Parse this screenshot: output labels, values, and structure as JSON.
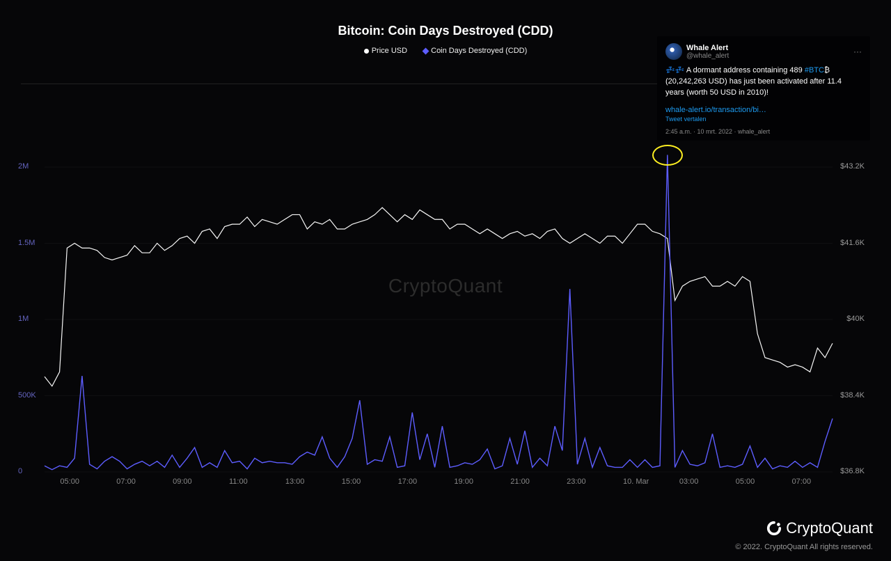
{
  "chart": {
    "title": "Bitcoin: Coin Days Destroyed (CDD)",
    "legend": {
      "price": {
        "label": "Price USD",
        "color": "#ffffff"
      },
      "cdd": {
        "label": "Coin Days Destroyed (CDD)",
        "color": "#5d5dff"
      }
    },
    "watermark": "CryptoQuant",
    "background_color": "#060608",
    "grid_color": "#2a2a2a",
    "axis_label_color": "#888888",
    "axis_label_fontsize": 11,
    "price_series": {
      "color": "#f6f6f6",
      "line_width": 1.2,
      "values": [
        38800,
        38600,
        38900,
        41500,
        41600,
        41500,
        41500,
        41450,
        41300,
        41250,
        41300,
        41350,
        41550,
        41400,
        41400,
        41600,
        41450,
        41550,
        41700,
        41750,
        41600,
        41850,
        41900,
        41700,
        41950,
        42000,
        42000,
        42150,
        41950,
        42100,
        42050,
        42000,
        42100,
        42200,
        42200,
        41900,
        42050,
        42000,
        42100,
        41900,
        41900,
        42000,
        42050,
        42100,
        42200,
        42350,
        42200,
        42050,
        42200,
        42100,
        42300,
        42200,
        42100,
        42100,
        41900,
        42000,
        42000,
        41900,
        41800,
        41900,
        41800,
        41700,
        41800,
        41850,
        41750,
        41800,
        41700,
        41850,
        41900,
        41700,
        41600,
        41700,
        41800,
        41700,
        41600,
        41750,
        41750,
        41600,
        41800,
        42000,
        42000,
        41850,
        41800,
        41700,
        40400,
        40700,
        40800,
        40850,
        40900,
        40700,
        40700,
        40800,
        40700,
        40900,
        40800,
        39700,
        39200,
        39150,
        39100,
        39000,
        39050,
        39000,
        38900,
        39400,
        39200,
        39500
      ]
    },
    "cdd_series": {
      "color": "#5d5dff",
      "line_width": 1.4,
      "values": [
        40000,
        15000,
        40000,
        30000,
        90000,
        630000,
        50000,
        20000,
        70000,
        100000,
        70000,
        20000,
        50000,
        70000,
        40000,
        70000,
        30000,
        110000,
        30000,
        90000,
        160000,
        30000,
        60000,
        30000,
        140000,
        60000,
        70000,
        20000,
        90000,
        60000,
        70000,
        60000,
        60000,
        50000,
        100000,
        130000,
        110000,
        230000,
        90000,
        30000,
        100000,
        220000,
        470000,
        50000,
        80000,
        70000,
        230000,
        30000,
        40000,
        390000,
        80000,
        250000,
        30000,
        300000,
        30000,
        40000,
        60000,
        50000,
        80000,
        150000,
        20000,
        40000,
        220000,
        50000,
        270000,
        30000,
        90000,
        40000,
        300000,
        140000,
        1200000,
        50000,
        220000,
        30000,
        160000,
        40000,
        30000,
        30000,
        80000,
        30000,
        80000,
        30000,
        40000,
        2080000,
        30000,
        140000,
        50000,
        40000,
        60000,
        250000,
        30000,
        40000,
        30000,
        50000,
        170000,
        30000,
        90000,
        20000,
        40000,
        30000,
        70000,
        30000,
        60000,
        30000,
        200000,
        350000
      ]
    },
    "y_left": {
      "min": 0,
      "max": 2000000,
      "ticks": [
        {
          "v": 0,
          "label": "0"
        },
        {
          "v": 500000,
          "label": "500K"
        },
        {
          "v": 1000000,
          "label": "1M"
        },
        {
          "v": 1500000,
          "label": "1.5M"
        },
        {
          "v": 2000000,
          "label": "2M"
        }
      ],
      "label_color": "#6464c0"
    },
    "y_right": {
      "min": 36800,
      "max": 43200,
      "ticks": [
        {
          "v": 36800,
          "label": "$36.8K"
        },
        {
          "v": 38400,
          "label": "$38.4K"
        },
        {
          "v": 40000,
          "label": "$40K"
        },
        {
          "v": 41600,
          "label": "$41.6K"
        },
        {
          "v": 43200,
          "label": "$43.2K"
        }
      ],
      "label_color": "#999999"
    },
    "x_axis": {
      "labels": [
        "05:00",
        "07:00",
        "09:00",
        "11:00",
        "13:00",
        "15:00",
        "17:00",
        "19:00",
        "21:00",
        "23:00",
        "10. Mar",
        "03:00",
        "05:00",
        "07:00"
      ]
    },
    "highlight_ellipse": {
      "data_index": 83,
      "color": "#fcee21"
    }
  },
  "tweet": {
    "name": "Whale Alert",
    "handle": "@whale_alert",
    "body_prefix": "💤💤 A dormant address containing 489 ",
    "hashtag": "#BTC",
    "emoji_after": "₿",
    "body_suffix": " (20,242,263 USD) has just been activated after 11.4 years (worth 50 USD in 2010)!",
    "link": "whale-alert.io/transaction/bi…",
    "translate": "Tweet vertalen",
    "meta": "2:45 a.m. · 10 mrt. 2022 · whale_alert"
  },
  "footer": {
    "brand": "CryptoQuant",
    "copyright": "© 2022. CryptoQuant All rights reserved."
  }
}
